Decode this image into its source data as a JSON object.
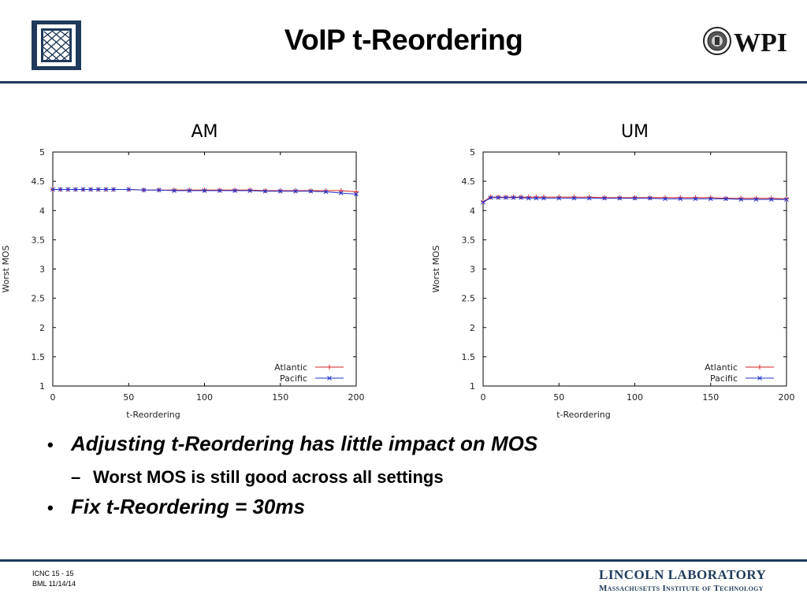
{
  "slide": {
    "title": "VoIP t-Reordering",
    "logo_right_text": "WPI"
  },
  "bullets": [
    {
      "level": 1,
      "text": "Adjusting t-Reordering has little impact on MOS"
    },
    {
      "level": 2,
      "text": "Worst MOS is still good across all settings"
    },
    {
      "level": 1,
      "text": "Fix t-Reordering = 30ms"
    }
  ],
  "footer": {
    "line1": "ICNC 15 - 15",
    "line2": "BML  11/14/14",
    "org_line1": "LINCOLN LABORATORY",
    "org_line2": "Massachusetts Institute of Technology"
  },
  "colors": {
    "navy": "#1f3a5a",
    "atlantic": "#d62020",
    "pacific": "#2233cc"
  },
  "chart_data": [
    {
      "type": "line",
      "title": "AM",
      "xlabel": "t-Reordering",
      "ylabel": "Worst MOS",
      "xlim": [
        0,
        200
      ],
      "ylim": [
        1,
        5
      ],
      "xticks": [
        0,
        50,
        100,
        150,
        200
      ],
      "yticks": [
        1,
        1.5,
        2,
        2.5,
        3,
        3.5,
        4,
        4.5,
        5
      ],
      "legend_position": "bottom-right",
      "series": [
        {
          "name": "Atlantic",
          "marker": "plus",
          "color": "#d62020",
          "x": [
            0,
            5,
            10,
            15,
            20,
            25,
            30,
            35,
            40,
            50,
            60,
            70,
            80,
            90,
            100,
            110,
            120,
            130,
            140,
            150,
            160,
            170,
            180,
            190,
            200
          ],
          "y": [
            4.36,
            4.36,
            4.36,
            4.36,
            4.36,
            4.36,
            4.36,
            4.36,
            4.36,
            4.36,
            4.35,
            4.35,
            4.35,
            4.35,
            4.35,
            4.35,
            4.35,
            4.35,
            4.34,
            4.34,
            4.34,
            4.34,
            4.34,
            4.34,
            4.32
          ]
        },
        {
          "name": "Pacific",
          "marker": "x",
          "color": "#2233cc",
          "x": [
            0,
            5,
            10,
            15,
            20,
            25,
            30,
            35,
            40,
            50,
            60,
            70,
            80,
            90,
            100,
            110,
            120,
            130,
            140,
            150,
            160,
            170,
            180,
            190,
            200
          ],
          "y": [
            4.36,
            4.36,
            4.36,
            4.36,
            4.36,
            4.36,
            4.36,
            4.36,
            4.36,
            4.36,
            4.35,
            4.35,
            4.34,
            4.34,
            4.34,
            4.34,
            4.34,
            4.34,
            4.33,
            4.33,
            4.33,
            4.33,
            4.32,
            4.3,
            4.28
          ]
        }
      ]
    },
    {
      "type": "line",
      "title": "UM",
      "xlabel": "t-Reordering",
      "ylabel": "Worst MOS",
      "xlim": [
        0,
        200
      ],
      "ylim": [
        1,
        5
      ],
      "xticks": [
        0,
        50,
        100,
        150,
        200
      ],
      "yticks": [
        1,
        1.5,
        2,
        2.5,
        3,
        3.5,
        4,
        4.5,
        5
      ],
      "legend_position": "bottom-right",
      "series": [
        {
          "name": "Atlantic",
          "marker": "plus",
          "color": "#d62020",
          "x": [
            0,
            5,
            10,
            15,
            20,
            25,
            30,
            35,
            40,
            50,
            60,
            70,
            80,
            90,
            100,
            110,
            120,
            130,
            140,
            150,
            160,
            170,
            180,
            190,
            200
          ],
          "y": [
            4.15,
            4.23,
            4.23,
            4.23,
            4.23,
            4.23,
            4.23,
            4.23,
            4.23,
            4.23,
            4.23,
            4.23,
            4.22,
            4.22,
            4.22,
            4.22,
            4.22,
            4.22,
            4.22,
            4.22,
            4.21,
            4.21,
            4.21,
            4.21,
            4.2
          ]
        },
        {
          "name": "Pacific",
          "marker": "x",
          "color": "#2233cc",
          "x": [
            0,
            5,
            10,
            15,
            20,
            25,
            30,
            35,
            40,
            50,
            60,
            70,
            80,
            90,
            100,
            110,
            120,
            130,
            140,
            150,
            160,
            170,
            180,
            190,
            200
          ],
          "y": [
            4.14,
            4.22,
            4.22,
            4.22,
            4.22,
            4.22,
            4.21,
            4.21,
            4.21,
            4.21,
            4.21,
            4.21,
            4.21,
            4.21,
            4.21,
            4.21,
            4.2,
            4.2,
            4.2,
            4.2,
            4.2,
            4.19,
            4.19,
            4.19,
            4.19
          ]
        }
      ]
    }
  ]
}
